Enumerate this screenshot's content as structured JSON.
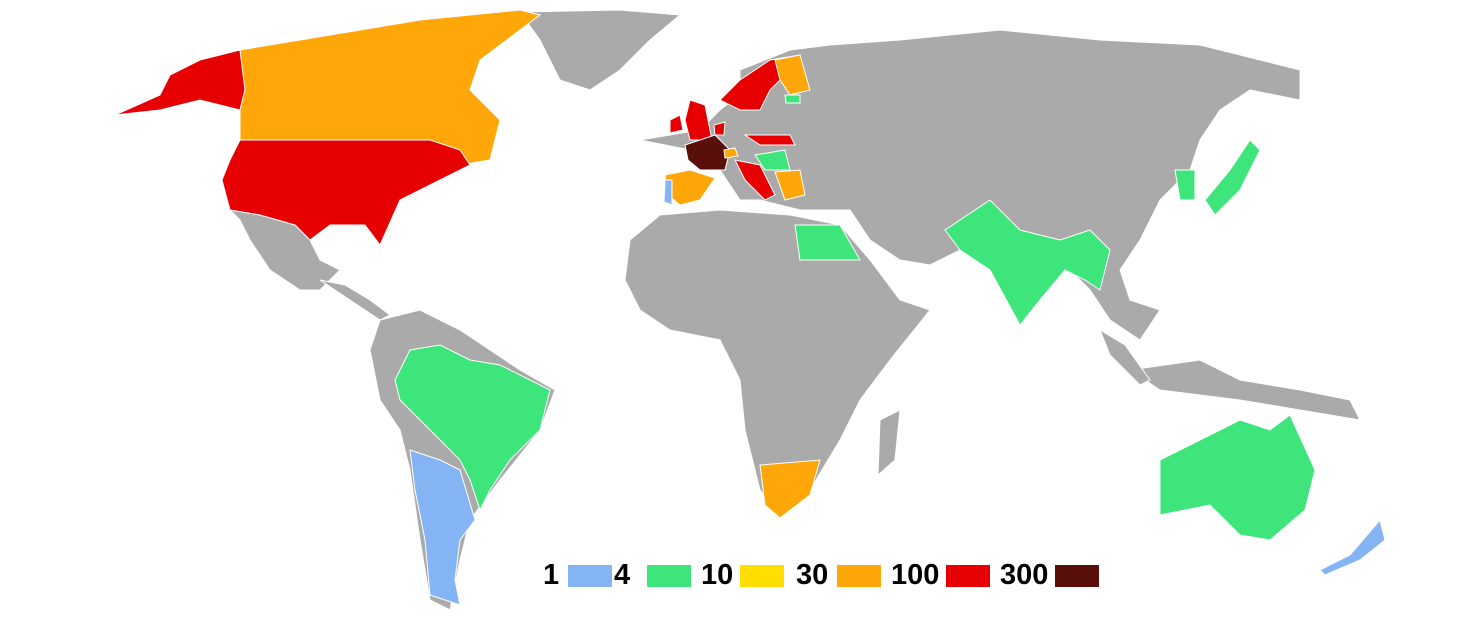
{
  "legend": {
    "labels": [
      "1",
      "4",
      "10",
      "30",
      "100",
      "300"
    ],
    "colors": [
      "#85b4f5",
      "#3de57b",
      "#ffde00",
      "#ffa608",
      "#e60000",
      "#5a100a"
    ]
  },
  "colors": {
    "no_data": "#aaaaaa",
    "background": "#ffffff",
    "border": "#ffffff"
  },
  "country_bins": {
    "alaska": 4,
    "canada": 3,
    "usa": 4,
    "mexico": -1,
    "greenland": -1,
    "brazil": 1,
    "argentina": 0,
    "south-africa": 3,
    "egypt": 1,
    "scandinavia": 4,
    "finland": 3,
    "united-kingdom": 4,
    "ireland": 4,
    "france": 5,
    "spain": 3,
    "portugal": 0,
    "italy": 4,
    "hungary": 4,
    "yugoslavia": 1,
    "greece": 3,
    "switzerland": 3,
    "latvia": 1,
    "netherlands": 4,
    "india": 1,
    "korea": 1,
    "japan": 1,
    "australia": 1,
    "new-zealand": 0
  }
}
